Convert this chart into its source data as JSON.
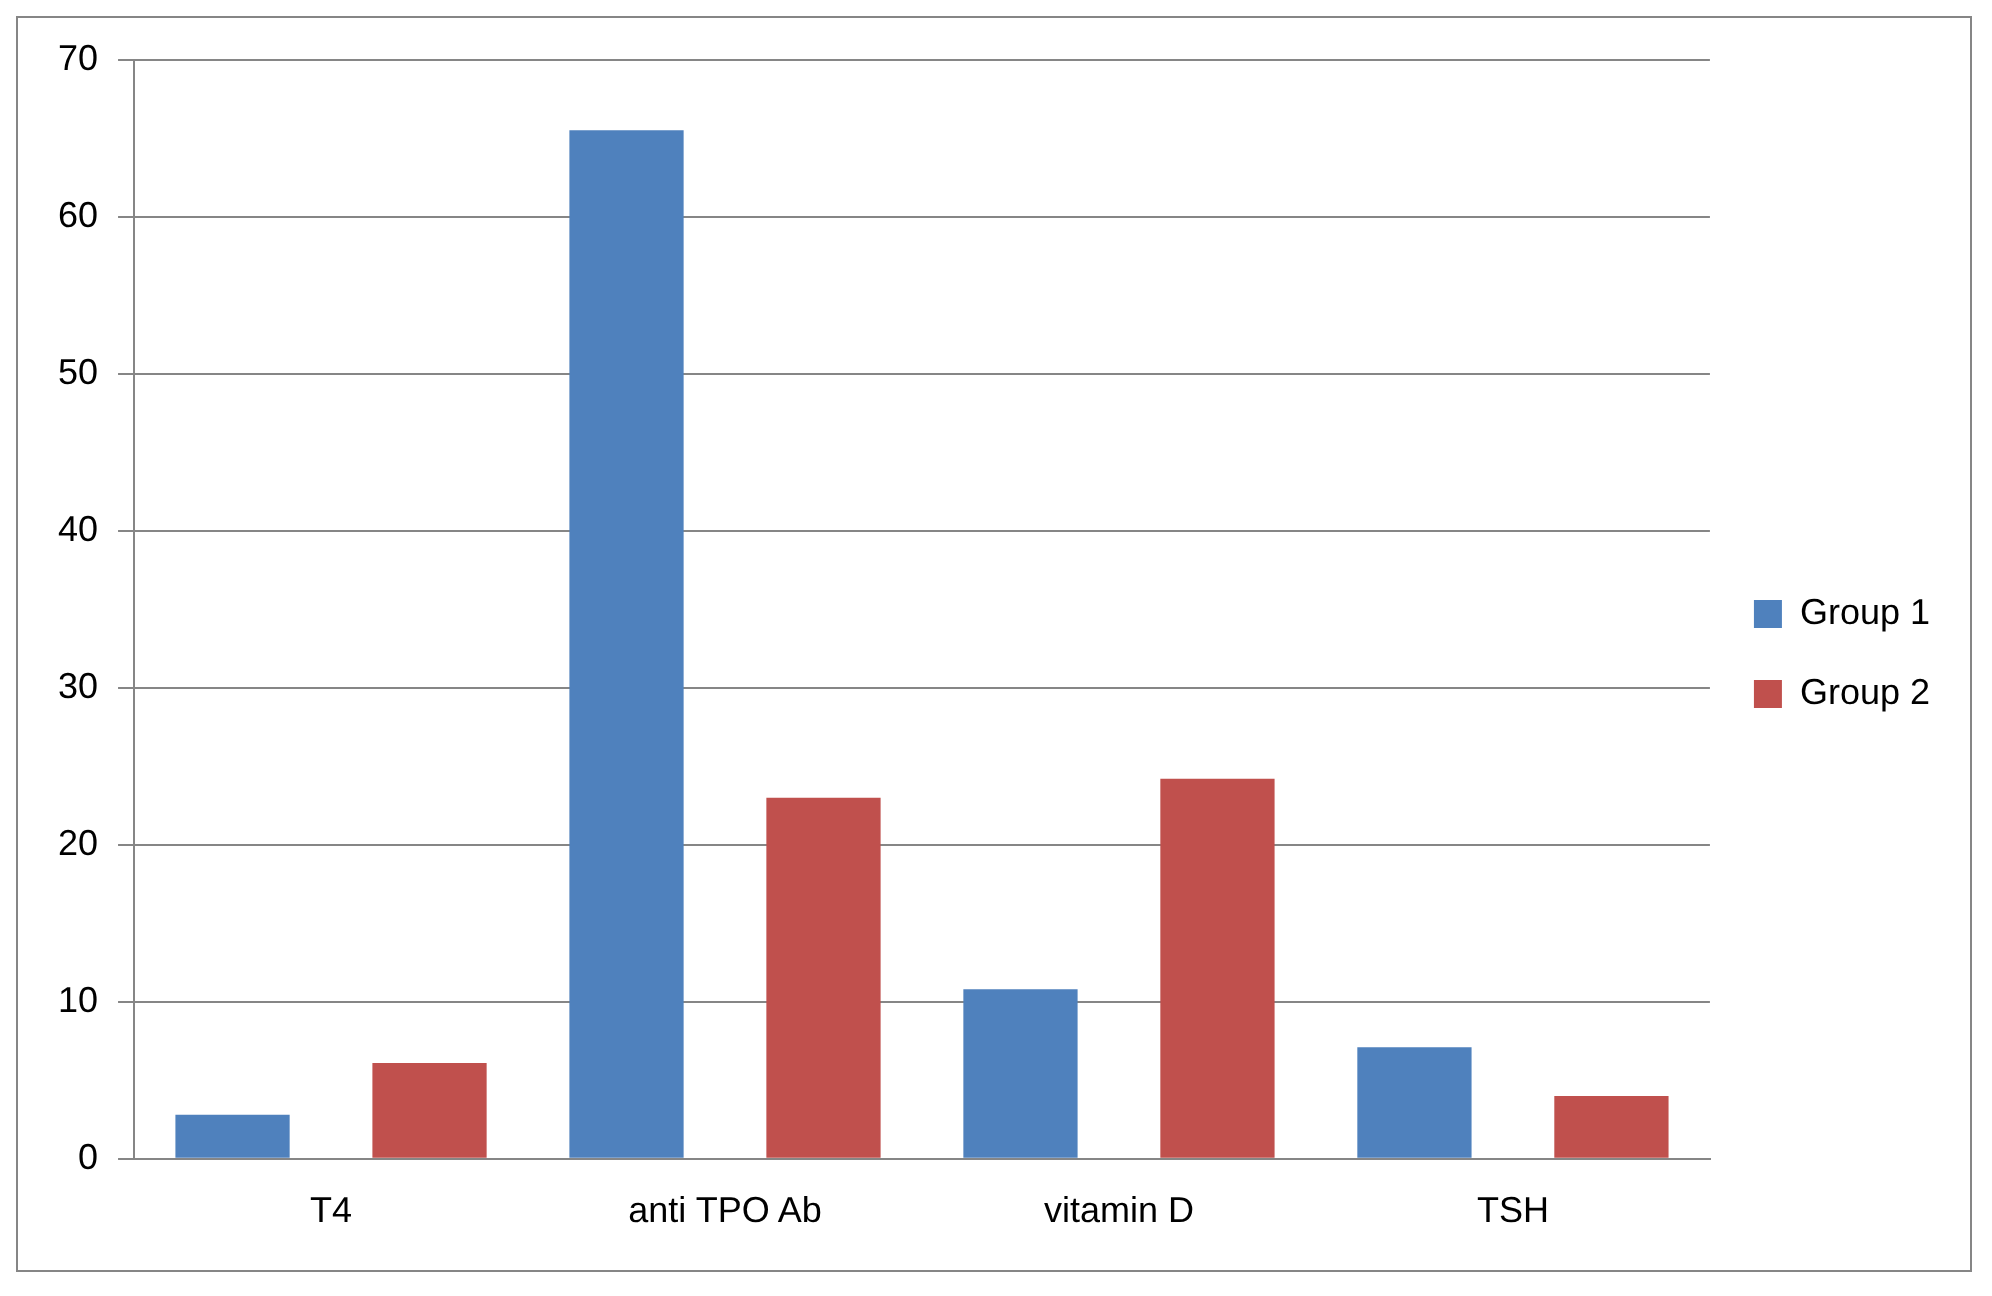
{
  "chart_data": {
    "type": "bar",
    "categories": [
      "T4",
      "anti TPO Ab",
      "vitamin D",
      "TSH"
    ],
    "series": [
      {
        "name": "Group 1",
        "color": "#4f81bd",
        "values": [
          2.8,
          65.5,
          10.8,
          7.1
        ]
      },
      {
        "name": "Group 2",
        "color": "#c0504d",
        "values": [
          6.1,
          23.0,
          24.2,
          4.0
        ]
      }
    ],
    "ylim": [
      0,
      70
    ],
    "yticks": [
      0,
      10,
      20,
      30,
      40,
      50,
      60,
      70
    ],
    "grid": "y",
    "legend": "right"
  }
}
